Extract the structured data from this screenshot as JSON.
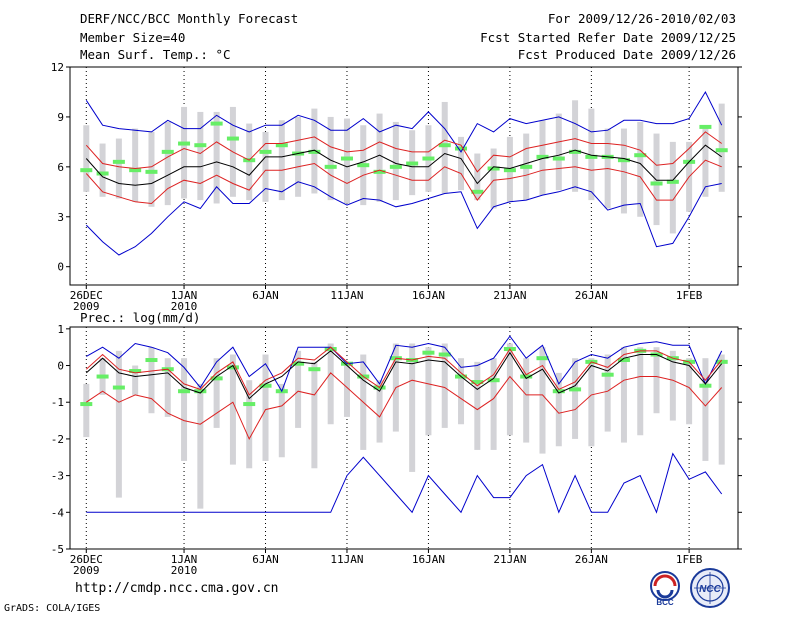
{
  "header": {
    "title_left": "DERF/NCC/BCC Monthly Forecast",
    "member_size": "Member Size=40",
    "variable": "Mean Surf. Temp.: °C",
    "title_right": "For 2009/12/26-2010/02/03",
    "fcst_started": "Fcst Started Refer Date 2009/12/25",
    "fcst_produced": "Fcst Produced Date 2009/12/26"
  },
  "footer": {
    "url": "http://cmdp.ncc.cma.gov.cn",
    "grads": "GrADS: COLA/IGES",
    "logo_bcc": "BCC",
    "logo_ncc": "NCC"
  },
  "colors": {
    "range_bar": "#d3d3d7",
    "observed_mark": "#66ee66",
    "ensemble_mean": "#000000",
    "spread_line": "#dd2222",
    "extreme_line": "#0000cc",
    "frame": "#000000",
    "gridline": "#000000"
  },
  "chart_data": [
    {
      "type": "line",
      "title": "Mean Surf. Temp.: °C",
      "ylabel": "°C",
      "ylim": [
        -1.1,
        12
      ],
      "yticks": [
        0,
        3,
        6,
        9,
        12
      ],
      "x": [
        1,
        2,
        3,
        4,
        5,
        6,
        7,
        8,
        9,
        10,
        11,
        12,
        13,
        14,
        15,
        16,
        17,
        18,
        19,
        20,
        21,
        22,
        23,
        24,
        25,
        26,
        27,
        28,
        29,
        30,
        31,
        32,
        33,
        34,
        35,
        36,
        37,
        38,
        39,
        40
      ],
      "xlim": [
        0,
        41
      ],
      "xticks": [
        {
          "x": 1,
          "line1": "26DEC",
          "line2": "2009"
        },
        {
          "x": 7,
          "line1": "1JAN",
          "line2": "2010"
        },
        {
          "x": 12,
          "line1": "6JAN",
          "line2": ""
        },
        {
          "x": 17,
          "line1": "11JAN",
          "line2": ""
        },
        {
          "x": 22,
          "line1": "16JAN",
          "line2": ""
        },
        {
          "x": 27,
          "line1": "21JAN",
          "line2": ""
        },
        {
          "x": 32,
          "line1": "26JAN",
          "line2": ""
        },
        {
          "x": 38,
          "line1": "1FEB",
          "line2": ""
        }
      ],
      "series": [
        {
          "name": "range_low",
          "values": [
            4.5,
            4.2,
            4.1,
            3.9,
            3.6,
            3.7,
            4.1,
            4.0,
            3.8,
            4.2,
            4.0,
            3.9,
            4.0,
            4.2,
            4.4,
            4.0,
            3.8,
            3.7,
            3.9,
            4.0,
            4.3,
            4.5,
            4.4,
            4.6,
            4.0,
            3.5,
            3.9,
            4.0,
            4.3,
            4.6,
            4.5,
            4.0,
            3.5,
            3.2,
            3.0,
            2.5,
            2.0,
            3.3,
            4.2,
            4.5
          ]
        },
        {
          "name": "range_high",
          "values": [
            8.5,
            7.4,
            7.7,
            8.3,
            8.1,
            8.7,
            9.6,
            9.3,
            9.3,
            9.6,
            8.6,
            8.1,
            8.8,
            9.0,
            9.5,
            9.0,
            8.9,
            8.5,
            9.2,
            8.7,
            8.2,
            8.5,
            9.9,
            7.8,
            6.8,
            7.1,
            7.8,
            8.0,
            8.8,
            9.2,
            10.0,
            9.5,
            8.3,
            8.3,
            8.7,
            8.0,
            7.5,
            7.5,
            8.5,
            9.8
          ]
        },
        {
          "name": "observed",
          "values": [
            5.8,
            5.6,
            6.3,
            5.8,
            5.7,
            6.9,
            7.4,
            7.3,
            8.6,
            7.7,
            6.4,
            6.9,
            7.3,
            6.8,
            6.9,
            6.0,
            6.5,
            6.1,
            5.7,
            6.0,
            6.2,
            6.5,
            7.3,
            7.1,
            4.5,
            5.9,
            5.8,
            6.0,
            6.6,
            6.5,
            6.9,
            6.6,
            6.6,
            6.4,
            6.7,
            5.0,
            5.1,
            6.3,
            8.4,
            7.0
          ]
        },
        {
          "name": "ensemble_mean",
          "values": [
            6.5,
            5.4,
            5.0,
            4.9,
            5.0,
            5.5,
            6.0,
            6.0,
            6.3,
            6.0,
            5.5,
            6.6,
            6.6,
            6.8,
            7.0,
            6.4,
            6.0,
            6.3,
            6.7,
            6.2,
            6.0,
            6.0,
            6.8,
            6.5,
            5.0,
            6.0,
            5.9,
            6.2,
            6.5,
            6.7,
            7.0,
            6.7,
            6.6,
            6.5,
            6.2,
            5.2,
            5.2,
            6.3,
            7.3,
            6.6
          ]
        },
        {
          "name": "mean_plus_sd",
          "values": [
            7.3,
            6.2,
            6.0,
            5.9,
            6.0,
            6.6,
            7.1,
            6.8,
            7.5,
            6.9,
            6.4,
            7.4,
            7.4,
            7.6,
            7.8,
            7.2,
            6.9,
            7.0,
            7.5,
            7.1,
            6.9,
            6.9,
            7.6,
            7.3,
            5.7,
            6.7,
            6.6,
            7.1,
            7.3,
            7.5,
            7.7,
            7.4,
            7.4,
            7.3,
            7.0,
            6.1,
            6.2,
            7.1,
            8.1,
            7.4
          ]
        },
        {
          "name": "mean_minus_sd",
          "values": [
            5.6,
            4.5,
            4.2,
            3.9,
            3.8,
            4.7,
            5.2,
            5.0,
            5.5,
            5.0,
            4.6,
            5.8,
            5.8,
            6.0,
            6.2,
            5.5,
            5.0,
            5.5,
            5.8,
            5.5,
            5.2,
            5.2,
            6.0,
            5.6,
            4.0,
            5.2,
            5.3,
            5.5,
            5.8,
            5.9,
            6.0,
            5.8,
            5.9,
            5.7,
            5.4,
            4.0,
            4.0,
            5.4,
            6.4,
            6.0
          ]
        },
        {
          "name": "member_max",
          "values": [
            10.0,
            8.5,
            8.3,
            8.2,
            8.1,
            8.8,
            8.3,
            8.3,
            9.1,
            8.5,
            8.1,
            8.5,
            8.5,
            9.1,
            8.8,
            8.2,
            8.2,
            8.9,
            8.1,
            8.5,
            8.3,
            9.3,
            8.3,
            6.9,
            8.6,
            8.1,
            8.9,
            8.6,
            8.8,
            9.0,
            8.6,
            8.1,
            8.2,
            8.8,
            8.8,
            8.6,
            8.6,
            8.9,
            10.5,
            8.5
          ]
        },
        {
          "name": "member_min",
          "values": [
            2.5,
            1.5,
            0.7,
            1.2,
            2.0,
            3.0,
            3.9,
            3.5,
            4.8,
            3.8,
            3.8,
            4.7,
            4.5,
            5.1,
            4.8,
            4.2,
            3.7,
            4.1,
            4.0,
            3.6,
            3.8,
            4.1,
            4.4,
            4.5,
            2.3,
            3.6,
            3.9,
            4.0,
            4.3,
            4.5,
            4.8,
            4.5,
            3.4,
            3.7,
            3.8,
            1.2,
            1.4,
            3.0,
            4.8,
            5.0
          ]
        }
      ]
    },
    {
      "type": "line",
      "title": "Prec.: log(mm/d)",
      "ylabel": "log(mm/d)",
      "ylim": [
        -5,
        1.05
      ],
      "yticks": [
        -5,
        -4,
        -3,
        -2,
        -1,
        0,
        1
      ],
      "x": [
        1,
        2,
        3,
        4,
        5,
        6,
        7,
        8,
        9,
        10,
        11,
        12,
        13,
        14,
        15,
        16,
        17,
        18,
        19,
        20,
        21,
        22,
        23,
        24,
        25,
        26,
        27,
        28,
        29,
        30,
        31,
        32,
        33,
        34,
        35,
        36,
        37,
        38,
        39,
        40
      ],
      "xlim": [
        0,
        41
      ],
      "xticks": [
        {
          "x": 1,
          "line1": "26DEC",
          "line2": "2009"
        },
        {
          "x": 7,
          "line1": "1JAN",
          "line2": "2010"
        },
        {
          "x": 12,
          "line1": "6JAN",
          "line2": ""
        },
        {
          "x": 17,
          "line1": "11JAN",
          "line2": ""
        },
        {
          "x": 22,
          "line1": "16JAN",
          "line2": ""
        },
        {
          "x": 27,
          "line1": "21JAN",
          "line2": ""
        },
        {
          "x": 32,
          "line1": "26JAN",
          "line2": ""
        },
        {
          "x": 38,
          "line1": "1FEB",
          "line2": ""
        }
      ],
      "series": [
        {
          "name": "range_low",
          "values": [
            -1.95,
            -0.8,
            -3.6,
            -0.8,
            -1.3,
            -1.4,
            -2.6,
            -3.9,
            -1.7,
            -2.7,
            -2.8,
            -2.6,
            -2.5,
            -1.7,
            -2.8,
            -1.6,
            -1.4,
            -2.3,
            -2.1,
            -1.8,
            -2.9,
            -1.9,
            -1.7,
            -1.6,
            -2.3,
            -2.3,
            -1.9,
            -2.1,
            -2.4,
            -2.2,
            -2.0,
            -2.2,
            -1.8,
            -2.1,
            -1.9,
            -1.3,
            -1.5,
            -1.6,
            -2.6,
            -2.7
          ]
        },
        {
          "name": "range_high",
          "values": [
            -0.5,
            0.2,
            0.4,
            0.0,
            0.5,
            0.2,
            0.2,
            -0.5,
            0.2,
            0.3,
            -0.4,
            0.3,
            -0.5,
            0.4,
            0.1,
            0.6,
            0.0,
            0.3,
            -0.4,
            0.6,
            0.6,
            0.5,
            0.6,
            0.2,
            0.1,
            0.2,
            0.6,
            0.2,
            0.5,
            -0.2,
            0.2,
            0.2,
            0.3,
            0.5,
            0.5,
            0.5,
            0.4,
            0.2,
            0.2,
            0.3
          ]
        },
        {
          "name": "observed",
          "values": [
            -1.05,
            -0.3,
            -0.6,
            -0.15,
            0.15,
            -0.1,
            -0.7,
            -0.7,
            -0.35,
            -0.05,
            -1.05,
            -0.55,
            -0.7,
            0.05,
            -0.1,
            0.45,
            0.05,
            -0.3,
            -0.6,
            0.2,
            0.15,
            0.35,
            0.3,
            -0.3,
            -0.45,
            -0.4,
            0.45,
            -0.3,
            0.2,
            -0.7,
            -0.65,
            0.1,
            -0.25,
            0.15,
            0.4,
            0.3,
            0.2,
            0.1,
            -0.55,
            0.1
          ]
        },
        {
          "name": "ensemble_mean",
          "values": [
            -0.2,
            0.2,
            -0.2,
            -0.3,
            -0.25,
            -0.2,
            -0.6,
            -0.75,
            -0.3,
            0.0,
            -0.9,
            -0.5,
            -0.3,
            0.1,
            0.05,
            0.4,
            0.0,
            -0.4,
            -0.7,
            0.1,
            0.05,
            0.15,
            0.1,
            -0.3,
            -0.65,
            -0.35,
            0.35,
            -0.35,
            -0.1,
            -0.75,
            -0.55,
            0.0,
            -0.15,
            0.2,
            0.3,
            0.3,
            0.1,
            0.0,
            -0.5,
            0.05
          ]
        },
        {
          "name": "mean_plus_sd",
          "values": [
            -0.1,
            0.3,
            -0.1,
            -0.2,
            -0.15,
            -0.1,
            -0.5,
            -0.65,
            -0.2,
            0.1,
            -0.8,
            -0.4,
            -0.2,
            0.2,
            0.15,
            0.5,
            0.1,
            -0.3,
            -0.6,
            0.2,
            0.15,
            0.25,
            0.2,
            -0.2,
            -0.55,
            -0.25,
            0.45,
            -0.25,
            0.0,
            -0.65,
            -0.45,
            0.1,
            -0.05,
            0.3,
            0.4,
            0.4,
            0.2,
            0.1,
            -0.4,
            0.15
          ]
        },
        {
          "name": "mean_minus_sd",
          "values": [
            -1.0,
            -0.7,
            -1.0,
            -0.8,
            -0.9,
            -1.3,
            -1.5,
            -1.6,
            -1.3,
            -1.0,
            -2.0,
            -1.2,
            -1.1,
            -0.7,
            -0.8,
            -0.2,
            -0.6,
            -1.0,
            -1.4,
            -0.6,
            -0.4,
            -0.5,
            -0.6,
            -0.9,
            -1.2,
            -0.9,
            -0.3,
            -0.8,
            -0.8,
            -1.3,
            -1.2,
            -0.8,
            -0.7,
            -0.4,
            -0.3,
            -0.3,
            -0.4,
            -0.6,
            -1.1,
            -0.6
          ]
        },
        {
          "name": "member_max",
          "values": [
            0.25,
            0.5,
            0.2,
            0.6,
            0.5,
            0.35,
            -0.05,
            -0.6,
            0.1,
            0.5,
            -0.3,
            0.05,
            -0.7,
            0.5,
            0.5,
            0.5,
            0.05,
            0.1,
            -0.5,
            0.55,
            0.5,
            0.6,
            0.5,
            -0.05,
            0.0,
            0.2,
            0.8,
            0.2,
            0.55,
            -0.5,
            0.1,
            0.3,
            0.2,
            0.5,
            0.6,
            0.65,
            0.55,
            0.55,
            -0.5,
            0.4
          ]
        },
        {
          "name": "member_min",
          "values": [
            -4.0,
            -4.0,
            -4.0,
            -4.0,
            -4.0,
            -4.0,
            -4.0,
            -4.0,
            -4.0,
            -4.0,
            -4.0,
            -4.0,
            -4.0,
            -4.0,
            -4.0,
            -4.0,
            -3.0,
            -2.5,
            -3.0,
            -3.5,
            -4.0,
            -3.0,
            -3.5,
            -4.0,
            -3.0,
            -3.6,
            -3.6,
            -3.0,
            -2.7,
            -4.0,
            -3.0,
            -4.0,
            -4.0,
            -3.2,
            -3.0,
            -4.0,
            -2.4,
            -3.1,
            -2.9,
            -3.5
          ]
        }
      ]
    }
  ]
}
